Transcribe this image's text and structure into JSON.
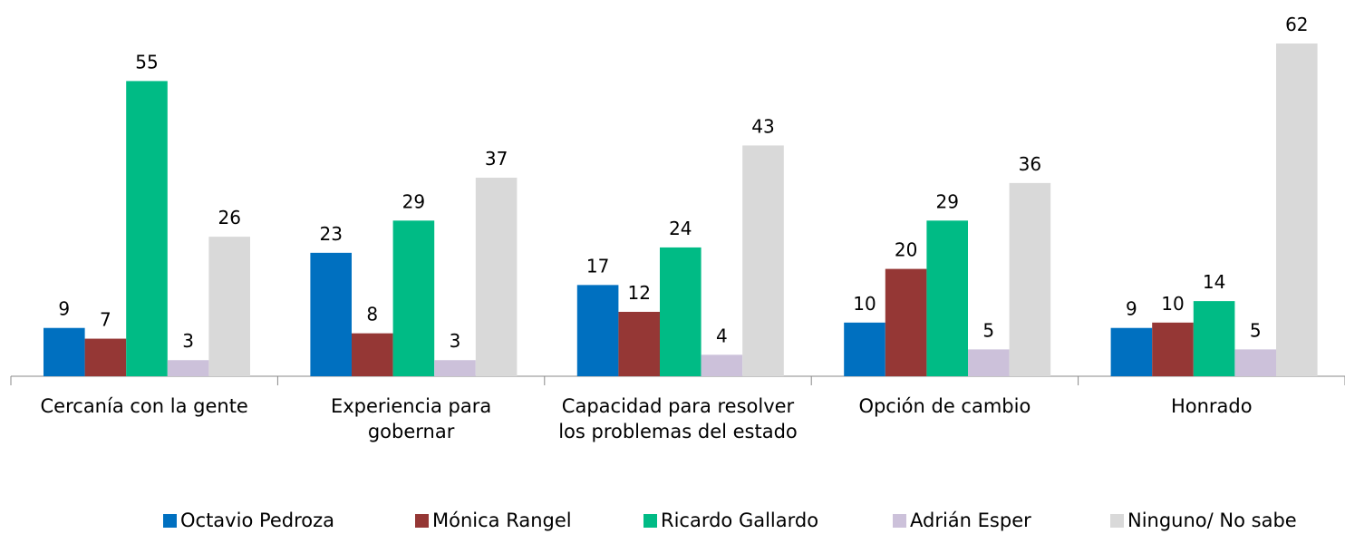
{
  "chart_data": {
    "type": "bar",
    "categories": [
      "Cercanía con la gente",
      "Experiencia para gobernar",
      "Capacidad para resolver los problemas del estado",
      "Opción de cambio",
      "Honrado"
    ],
    "series": [
      {
        "name": "Octavio Pedroza",
        "color": "#0070c0",
        "values": [
          9,
          23,
          17,
          10,
          9
        ]
      },
      {
        "name": "Mónica Rangel",
        "color": "#953735",
        "values": [
          7,
          8,
          12,
          20,
          10
        ]
      },
      {
        "name": "Ricardo Gallardo",
        "color": "#00bb85",
        "values": [
          55,
          29,
          24,
          29,
          14
        ]
      },
      {
        "name": "Adrián Esper",
        "color": "#ccc1da",
        "values": [
          3,
          3,
          4,
          5,
          5
        ]
      },
      {
        "name": "Ninguno/ No sabe",
        "color": "#d9d9d9",
        "values": [
          26,
          37,
          43,
          36,
          62
        ]
      }
    ],
    "legend": "bottom"
  }
}
